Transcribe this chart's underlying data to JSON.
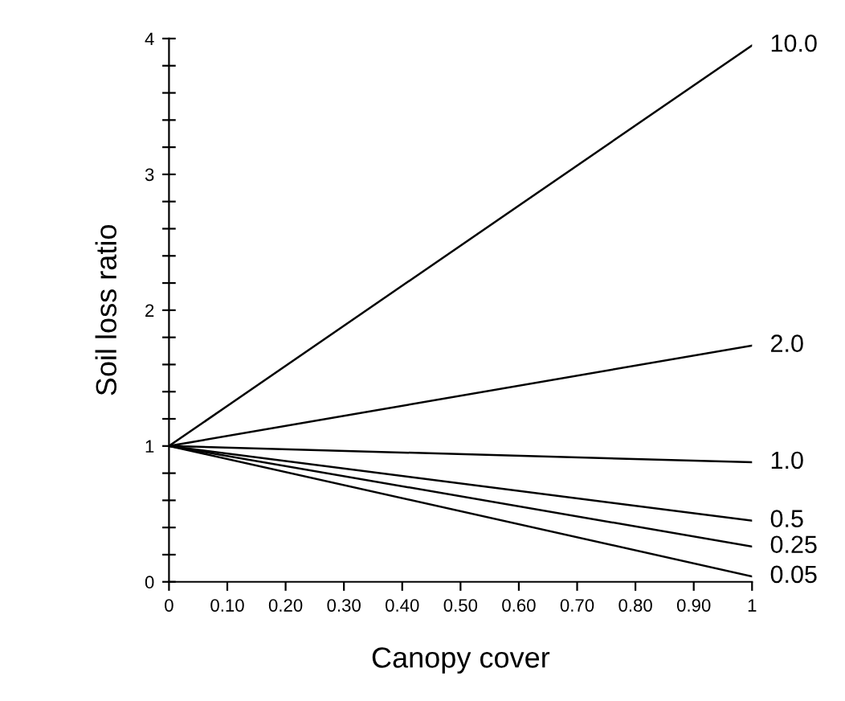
{
  "chart_data": {
    "type": "line",
    "xlabel": "Canopy cover",
    "ylabel": "Soil loss ratio",
    "x": [
      0,
      1
    ],
    "series": [
      {
        "name": "10.0",
        "color": "#000000",
        "values": [
          1,
          3.95
        ]
      },
      {
        "name": "2.0",
        "color": "#000000",
        "values": [
          1,
          1.74
        ]
      },
      {
        "name": "1.0",
        "color": "#000000",
        "values": [
          1,
          0.88
        ]
      },
      {
        "name": "0.5",
        "color": "#000000",
        "values": [
          1,
          0.45
        ]
      },
      {
        "name": "0.25",
        "color": "#000000",
        "values": [
          1,
          0.26
        ]
      },
      {
        "name": "0.05",
        "color": "#000000",
        "values": [
          1,
          0.04
        ]
      }
    ],
    "xlim": [
      0,
      1
    ],
    "ylim": [
      0,
      4
    ],
    "xticks": [
      0,
      {
        "value": 0.1,
        "label": "0.10"
      },
      {
        "value": 0.2,
        "label": "0.20"
      },
      {
        "value": 0.3,
        "label": "0.30"
      },
      {
        "value": 0.4,
        "label": "0.40"
      },
      {
        "value": 0.5,
        "label": "0.50"
      },
      {
        "value": 0.6,
        "label": "0.60"
      },
      {
        "value": 0.7,
        "label": "0.70"
      },
      {
        "value": 0.8,
        "label": "0.80"
      },
      {
        "value": 0.9,
        "label": "0.90"
      },
      1
    ],
    "yticks": [
      0,
      {
        "value": 0.2,
        "label": null
      },
      {
        "value": 0.4,
        "label": null
      },
      {
        "value": 0.6,
        "label": null
      },
      {
        "value": 0.8,
        "label": null
      },
      1,
      {
        "value": 1.2,
        "label": null
      },
      {
        "value": 1.4,
        "label": null
      },
      {
        "value": 1.6,
        "label": null
      },
      {
        "value": 1.8,
        "label": null
      },
      2,
      {
        "value": 2.2,
        "label": null
      },
      {
        "value": 2.4,
        "label": null
      },
      {
        "value": 2.6,
        "label": null
      },
      {
        "value": 2.8,
        "label": null
      },
      3,
      {
        "value": 3.2,
        "label": null
      },
      {
        "value": 3.4,
        "label": null
      },
      {
        "value": 3.6,
        "label": null
      },
      {
        "value": 3.8,
        "label": null
      },
      4
    ],
    "grid": false,
    "legend": false,
    "marker": "none",
    "line_style": "solid"
  }
}
